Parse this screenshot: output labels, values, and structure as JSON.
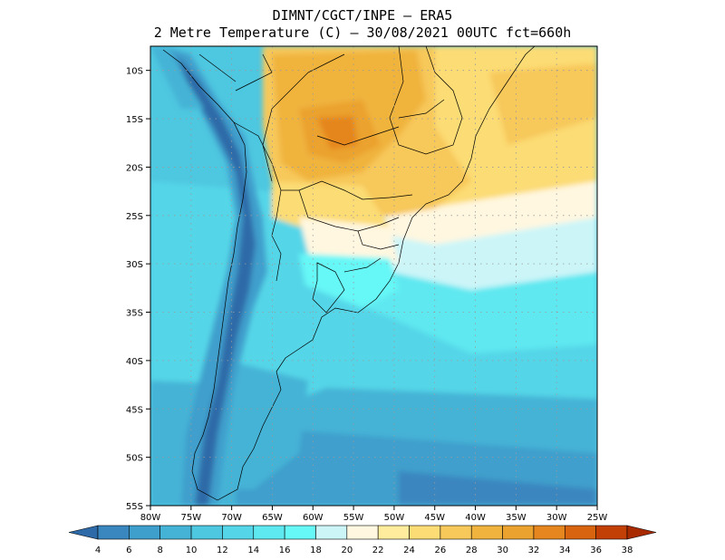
{
  "title": {
    "line1": "DIMNT/CGCT/INPE  –   ERA5",
    "line2": "2 Metre Temperature (C)  –   30/08/2021 00UTC fct=660h"
  },
  "map": {
    "lat_ticks": [
      "10S",
      "15S",
      "20S",
      "25S",
      "30S",
      "35S",
      "40S",
      "45S",
      "50S",
      "55S"
    ],
    "lon_ticks": [
      "80W",
      "75W",
      "70W",
      "65W",
      "60W",
      "55W",
      "50W",
      "45W",
      "40W",
      "35W",
      "30W",
      "25W"
    ],
    "lat_values": [
      -10,
      -15,
      -20,
      -25,
      -30,
      -35,
      -40,
      -45,
      -50,
      -55
    ],
    "lon_values": [
      -80,
      -75,
      -70,
      -65,
      -60,
      -55,
      -50,
      -45,
      -40,
      -35,
      -30,
      -25
    ],
    "lat_range": [
      -55,
      -7.5
    ],
    "lon_range": [
      -80,
      -25
    ],
    "grid": "dotted"
  },
  "colorbar": {
    "labels": [
      "4",
      "6",
      "8",
      "10",
      "12",
      "14",
      "16",
      "18",
      "20",
      "22",
      "24",
      "26",
      "28",
      "30",
      "32",
      "34",
      "36",
      "38"
    ],
    "colors": [
      "#2e6aa8",
      "#3a86bf",
      "#3f9fcc",
      "#45b3d6",
      "#4ec7e0",
      "#55d6e8",
      "#5ee8f0",
      "#66f7f7",
      "#ccf5f8",
      "#fff7e0",
      "#ffec9c",
      "#fcdc74",
      "#f7c85a",
      "#f0b43e",
      "#eba22e",
      "#e5861e",
      "#d86410",
      "#c24006",
      "#a82a00"
    ]
  }
}
